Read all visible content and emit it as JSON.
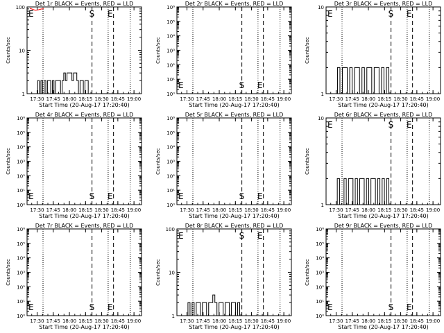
{
  "window": {
    "background": "#ffffff",
    "foreground": "#000000",
    "lld_color": "#ff0000"
  },
  "chart_data": [
    {
      "type": "line",
      "title": "Det 1r BLACK = Events, RED = LLD",
      "xlabel": "Start Time (20-Aug-17 17:20:40)",
      "ylabel": "Counts/sec",
      "yscale": "log",
      "ylim": [
        1,
        100
      ],
      "ytick_labels": [
        "1",
        "10",
        "100"
      ],
      "xtick_labels": [
        "17:30",
        "17:45",
        "18:00",
        "18:15",
        "18:30",
        "18:45",
        "19:00"
      ],
      "markers": [
        {
          "label": "E",
          "x": "17:20:40"
        },
        {
          "label": "S",
          "x": "18:21:00"
        },
        {
          "label": "E",
          "x": "18:38:00"
        }
      ],
      "dotted_lines": [
        "17:35:30",
        "18:36:00",
        "18:56:30"
      ],
      "dashed_lines": [
        "18:21:00",
        "18:41:00"
      ],
      "series": [
        {
          "name": "Events",
          "color": "#000000",
          "values": [
            1,
            2,
            1,
            2,
            1,
            2,
            1,
            2,
            2,
            1,
            2,
            1,
            2,
            2,
            2,
            1,
            2,
            3,
            2,
            3,
            3,
            3,
            2,
            3,
            3,
            2,
            1,
            2,
            2,
            1,
            2,
            2,
            1
          ]
        },
        {
          "name": "LLD",
          "color": "#ff0000",
          "values": [
            100,
            95,
            90,
            92,
            96,
            98
          ]
        }
      ]
    },
    {
      "type": "line",
      "title": "Det 2r BLACK = Events, RED = LLD",
      "xlabel": "Start Time (20-Aug-17 17:20:40)",
      "ylabel": "Counts/sec",
      "yscale": "log",
      "ylim": [
        1,
        1000000
      ],
      "ytick_labels": [
        "10⁰",
        "10¹",
        "10²",
        "10³",
        "10⁴",
        "10⁵",
        "10⁶"
      ],
      "xtick_labels": [
        "17:30",
        "17:45",
        "18:00",
        "18:15",
        "18:30",
        "18:45",
        "19:00"
      ],
      "markers": [
        {
          "label": "E",
          "x": "17:20:40"
        },
        {
          "label": "S",
          "x": "18:21:00"
        },
        {
          "label": "E",
          "x": "18:38:00"
        }
      ],
      "dotted_lines": [
        "17:35:30",
        "18:36:00",
        "18:56:30"
      ],
      "dashed_lines": [
        "18:21:00",
        "18:41:00"
      ],
      "series": [
        {
          "name": "Events",
          "color": "#000000",
          "values": []
        },
        {
          "name": "LLD",
          "color": "#ff0000",
          "values": []
        }
      ]
    },
    {
      "type": "line",
      "title": "Det 3r BLACK = Events, RED = LLD",
      "xlabel": "Start Time (20-Aug-17 17:20:40)",
      "ylabel": "Counts/sec",
      "yscale": "log",
      "ylim": [
        1,
        10
      ],
      "ytick_labels": [
        "1",
        "10"
      ],
      "xtick_labels": [
        "17:30",
        "17:45",
        "18:00",
        "18:15",
        "18:30",
        "18:45",
        "19:00"
      ],
      "markers": [
        {
          "label": "E",
          "x": "17:20:40"
        },
        {
          "label": "S",
          "x": "18:21:00"
        },
        {
          "label": "E",
          "x": "18:38:00"
        }
      ],
      "dotted_lines": [
        "17:35:30",
        "18:36:00",
        "18:56:30"
      ],
      "dashed_lines": [
        "18:21:00",
        "18:41:00"
      ],
      "series": [
        {
          "name": "Events",
          "color": "#000000",
          "values": [
            1,
            2,
            1,
            2,
            2,
            1,
            2,
            1,
            2,
            2,
            1,
            2,
            1,
            2,
            2,
            1,
            2,
            2,
            1,
            2,
            1,
            2
          ]
        },
        {
          "name": "LLD",
          "color": "#ff0000",
          "values": []
        }
      ]
    },
    {
      "type": "line",
      "title": "Det 4r BLACK = Events, RED = LLD",
      "xlabel": "Start Time (20-Aug-17 17:20:40)",
      "ylabel": "Counts/sec",
      "yscale": "log",
      "ylim": [
        1,
        1000000
      ],
      "ytick_labels": [
        "10⁰",
        "10¹",
        "10²",
        "10³",
        "10⁴",
        "10⁵",
        "10⁶"
      ],
      "xtick_labels": [
        "17:30",
        "17:45",
        "18:00",
        "18:15",
        "18:30",
        "18:45",
        "19:00"
      ],
      "markers": [
        {
          "label": "E",
          "x": "17:20:40"
        },
        {
          "label": "S",
          "x": "18:21:00"
        },
        {
          "label": "E",
          "x": "18:38:00"
        }
      ],
      "dotted_lines": [
        "17:35:30",
        "18:36:00",
        "18:56:30"
      ],
      "dashed_lines": [
        "18:21:00",
        "18:41:00"
      ],
      "series": [
        {
          "name": "Events",
          "color": "#000000",
          "values": []
        },
        {
          "name": "LLD",
          "color": "#ff0000",
          "values": []
        }
      ]
    },
    {
      "type": "line",
      "title": "Det 5r BLACK = Events, RED = LLD",
      "xlabel": "Start Time (20-Aug-17 17:20:40)",
      "ylabel": "Counts/sec",
      "yscale": "log",
      "ylim": [
        1,
        1000000
      ],
      "ytick_labels": [
        "10⁰",
        "10¹",
        "10²",
        "10³",
        "10⁴",
        "10⁵",
        "10⁶"
      ],
      "xtick_labels": [
        "17:30",
        "17:45",
        "18:00",
        "18:15",
        "18:30",
        "18:45",
        "19:00"
      ],
      "markers": [
        {
          "label": "E",
          "x": "17:20:40"
        },
        {
          "label": "S",
          "x": "18:21:00"
        },
        {
          "label": "E",
          "x": "18:38:00"
        }
      ],
      "dotted_lines": [
        "17:35:30",
        "18:36:00",
        "18:56:30"
      ],
      "dashed_lines": [
        "18:21:00",
        "18:41:00"
      ],
      "series": [
        {
          "name": "Events",
          "color": "#000000",
          "values": []
        },
        {
          "name": "LLD",
          "color": "#ff0000",
          "values": []
        }
      ]
    },
    {
      "type": "line",
      "title": "Det 6r BLACK = Events, RED = LLD",
      "xlabel": "Start Time (20-Aug-17 17:20:40)",
      "ylabel": "Counts/sec",
      "yscale": "log",
      "ylim": [
        1,
        10
      ],
      "ytick_labels": [
        "1",
        "10"
      ],
      "xtick_labels": [
        "17:30",
        "17:45",
        "18:00",
        "18:15",
        "18:30",
        "18:45",
        "19:00"
      ],
      "markers": [
        {
          "label": "E",
          "x": "17:20:40"
        },
        {
          "label": "S",
          "x": "18:21:00"
        },
        {
          "label": "E",
          "x": "18:38:00"
        }
      ],
      "dotted_lines": [
        "17:35:30",
        "18:36:00",
        "18:56:30"
      ],
      "dashed_lines": [
        "18:21:00",
        "18:41:00"
      ],
      "series": [
        {
          "name": "Events",
          "color": "#000000",
          "values": [
            1,
            2,
            1,
            1,
            2,
            1,
            2,
            2,
            1,
            2,
            1,
            2,
            2,
            1,
            2,
            1,
            2,
            2,
            1,
            2,
            1,
            2,
            1,
            2
          ]
        },
        {
          "name": "LLD",
          "color": "#ff0000",
          "values": []
        }
      ]
    },
    {
      "type": "line",
      "title": "Det 7r BLACK = Events, RED = LLD",
      "xlabel": "Start Time (20-Aug-17 17:20:40)",
      "ylabel": "Counts/sec",
      "yscale": "log",
      "ylim": [
        1,
        1000000
      ],
      "ytick_labels": [
        "10⁰",
        "10¹",
        "10²",
        "10³",
        "10⁴",
        "10⁵",
        "10⁶"
      ],
      "xtick_labels": [
        "17:30",
        "17:45",
        "18:00",
        "18:15",
        "18:30",
        "18:45",
        "19:00"
      ],
      "markers": [
        {
          "label": "E",
          "x": "17:20:40"
        },
        {
          "label": "S",
          "x": "18:21:00"
        },
        {
          "label": "E",
          "x": "18:38:00"
        }
      ],
      "dotted_lines": [
        "17:35:30",
        "18:36:00",
        "18:56:30"
      ],
      "dashed_lines": [
        "18:21:00",
        "18:41:00"
      ],
      "series": [
        {
          "name": "Events",
          "color": "#000000",
          "values": []
        },
        {
          "name": "LLD",
          "color": "#ff0000",
          "values": []
        }
      ]
    },
    {
      "type": "line",
      "title": "Det 8r BLACK = Events, RED = LLD",
      "xlabel": "Start Time (20-Aug-17 17:20:40)",
      "ylabel": "Counts/sec",
      "yscale": "log",
      "ylim": [
        1,
        100
      ],
      "ytick_labels": [
        "1",
        "10",
        "100"
      ],
      "xtick_labels": [
        "17:30",
        "17:45",
        "18:00",
        "18:15",
        "18:30",
        "18:45",
        "19:00"
      ],
      "markers": [
        {
          "label": "E",
          "x": "17:20:40"
        },
        {
          "label": "S",
          "x": "18:21:00"
        },
        {
          "label": "E",
          "x": "18:38:00"
        }
      ],
      "dotted_lines": [
        "17:35:30",
        "18:36:00",
        "18:56:30"
      ],
      "dashed_lines": [
        "18:21:00",
        "18:41:00"
      ],
      "series": [
        {
          "name": "Events",
          "color": "#000000",
          "values": [
            1,
            2,
            1,
            2,
            1,
            2,
            2,
            1,
            2,
            2,
            1,
            2,
            2,
            3,
            2,
            1,
            2,
            2,
            1,
            2,
            2,
            1,
            2,
            2,
            1,
            2
          ]
        },
        {
          "name": "LLD",
          "color": "#ff0000",
          "values": []
        }
      ]
    },
    {
      "type": "line",
      "title": "Det 9r BLACK = Events, RED = LLD",
      "xlabel": "Start Time (20-Aug-17 17:20:40)",
      "ylabel": "Counts/sec",
      "yscale": "log",
      "ylim": [
        1,
        1000000
      ],
      "ytick_labels": [
        "10⁰",
        "10¹",
        "10²",
        "10³",
        "10⁴",
        "10⁵",
        "10⁶"
      ],
      "xtick_labels": [
        "17:30",
        "17:45",
        "18:00",
        "18:15",
        "18:30",
        "18:45",
        "19:00"
      ],
      "markers": [
        {
          "label": "E",
          "x": "17:20:40"
        },
        {
          "label": "S",
          "x": "18:21:00"
        },
        {
          "label": "E",
          "x": "18:38:00"
        }
      ],
      "dotted_lines": [
        "17:35:30",
        "18:36:00",
        "18:56:30"
      ],
      "dashed_lines": [
        "18:21:00",
        "18:41:00"
      ],
      "series": [
        {
          "name": "Events",
          "color": "#000000",
          "values": []
        },
        {
          "name": "LLD",
          "color": "#ff0000",
          "values": []
        }
      ]
    }
  ]
}
